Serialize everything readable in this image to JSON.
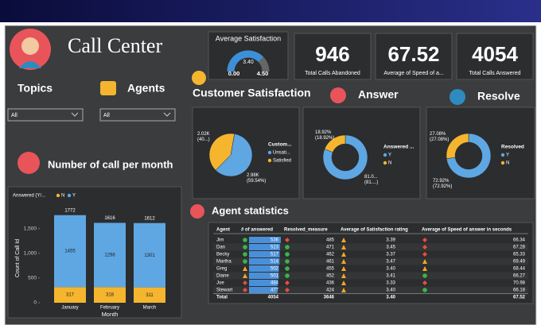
{
  "header": {
    "title": "Call Center"
  },
  "gauge": {
    "title": "Average Satisfaction",
    "value": {
      "value": 3.4,
      "label": "3.40"
    },
    "min": {
      "value": 0,
      "label": "0.00"
    },
    "max": {
      "value": 4.5,
      "label": "4.50"
    }
  },
  "kpis": [
    {
      "value": 946,
      "label": "Total Calls Abandoned"
    },
    {
      "value": 67.52,
      "label": "Average of Speed of a..."
    },
    {
      "value": 4054,
      "label": "Total Calls Answered"
    }
  ],
  "slicers": [
    {
      "title": "Topics",
      "value": "All"
    },
    {
      "title": "Agents",
      "value": "All"
    }
  ],
  "sections": {
    "satisfaction": "Customer Satisfaction",
    "answer": "Answer",
    "resolve": "Resolve",
    "monthly": "Number of call per month",
    "agents": "Agent statistics"
  },
  "pies": [
    {
      "type": "pie",
      "legend_title": "Custom...",
      "series": [
        {
          "name": "Unsati...",
          "color": "#5ea7e3",
          "value": 2980,
          "value_label": "2.98K (59.54%)"
        },
        {
          "name": "Satisfied",
          "color": "#f5b52e",
          "value": 2020,
          "value_label": "2.02K (40...)"
        }
      ]
    },
    {
      "type": "donut",
      "legend_title": "Answered ...",
      "series": [
        {
          "name": "Y",
          "color": "#5ea7e3",
          "value": 81.08,
          "value_label": "81.0... (81....)"
        },
        {
          "name": "N",
          "color": "#f5b52e",
          "value": 18.92,
          "value_label": "18.92% (18.92%)"
        }
      ]
    },
    {
      "type": "donut",
      "legend_title": "Resolved",
      "series": [
        {
          "name": "Y",
          "color": "#5ea7e3",
          "value": 72.92,
          "value_label": "72.92% (72.92%)"
        },
        {
          "name": "N",
          "color": "#f5b52e",
          "value": 27.08,
          "value_label": "27.08% (27.08%)"
        }
      ]
    }
  ],
  "chart_data": {
    "type": "bar",
    "stacked": true,
    "legend_title": "Answered (Y/...",
    "categories": [
      "January",
      "February",
      "March"
    ],
    "series": [
      {
        "name": "N",
        "color": "#f5b52e",
        "values": [
          317,
          318,
          311
        ]
      },
      {
        "name": "Y",
        "color": "#5ea7e3",
        "values": [
          1455,
          1298,
          1301
        ]
      }
    ],
    "totals": [
      1772,
      1616,
      1612
    ],
    "ylim": [
      0,
      1800
    ],
    "yticks": [
      0,
      500,
      {
        "value": 1000,
        "label": "1,000"
      },
      {
        "value": 1500,
        "label": "1,500"
      }
    ],
    "ylabel": "Count of Call Id",
    "xlabel": "Month"
  },
  "table": {
    "columns": [
      "Agent",
      "# of answered",
      "Resolved_measure",
      "Average of Satisfaction rating",
      "Average of Speed of answer in seconds"
    ],
    "rows": [
      [
        "Jim",
        536,
        485,
        "3.39",
        "66.34"
      ],
      [
        "Dan",
        523,
        471,
        "3.45",
        "67.28"
      ],
      [
        "Becky",
        517,
        462,
        "3.37",
        "65.33"
      ],
      [
        "Martha",
        514,
        461,
        "3.47",
        "69.49"
      ],
      [
        "Greg",
        502,
        455,
        "3.40",
        "68.44"
      ],
      [
        "Diane",
        501,
        452,
        "3.41",
        "66.27"
      ],
      [
        "Joe",
        484,
        436,
        "3.33",
        "70.98"
      ],
      [
        "Stewart",
        477,
        424,
        "3.40",
        "66.18"
      ]
    ],
    "total": [
      "Total",
      4054,
      3646,
      "3.40",
      "67.52"
    ]
  }
}
